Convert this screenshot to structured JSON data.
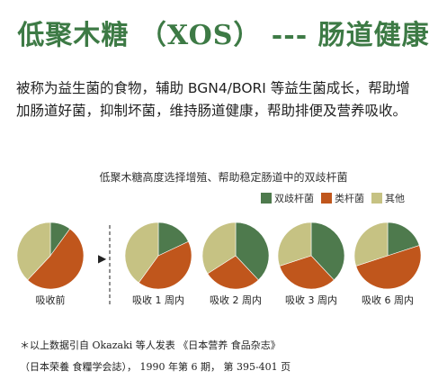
{
  "title": "低聚木糖 （XOS） --- 肠道健康",
  "intro": {
    "line1": "被称为益生菌的食物，辅助 BGN4/BORI 等益生菌成长，帮助增",
    "line2": "加肠道好菌，抑制坏菌，维持肠道健康，帮助排便及营养吸收。"
  },
  "chart_data": {
    "type": "pie",
    "title": "低聚木糖高度选择增殖、帮助稳定肠道中的双歧杆菌",
    "legend": [
      {
        "label": "双歧杆菌",
        "color": "#4e7a4d"
      },
      {
        "label": "类杆菌",
        "color": "#c0561c"
      },
      {
        "label": "其他",
        "color": "#c6c283"
      }
    ],
    "pies": [
      {
        "label": "吸收前",
        "values": [
          10,
          52,
          38
        ]
      },
      {
        "label": "吸收 1 周内",
        "values": [
          18,
          42,
          40
        ]
      },
      {
        "label": "吸收 2 周内",
        "values": [
          38,
          28,
          34
        ]
      },
      {
        "label": "吸收 3 周内",
        "values": [
          38,
          32,
          30
        ]
      },
      {
        "label": "吸收 6 周内",
        "values": [
          20,
          50,
          30
        ]
      }
    ],
    "arrow": "▶"
  },
  "notes": {
    "line1": "＊以上数据引自 Okazaki 等人发表 《日本营养  食品杂志》",
    "line2": "（日本荣養  食糧学会誌）， 1990 年第 6 期， 第 395-401 页"
  }
}
